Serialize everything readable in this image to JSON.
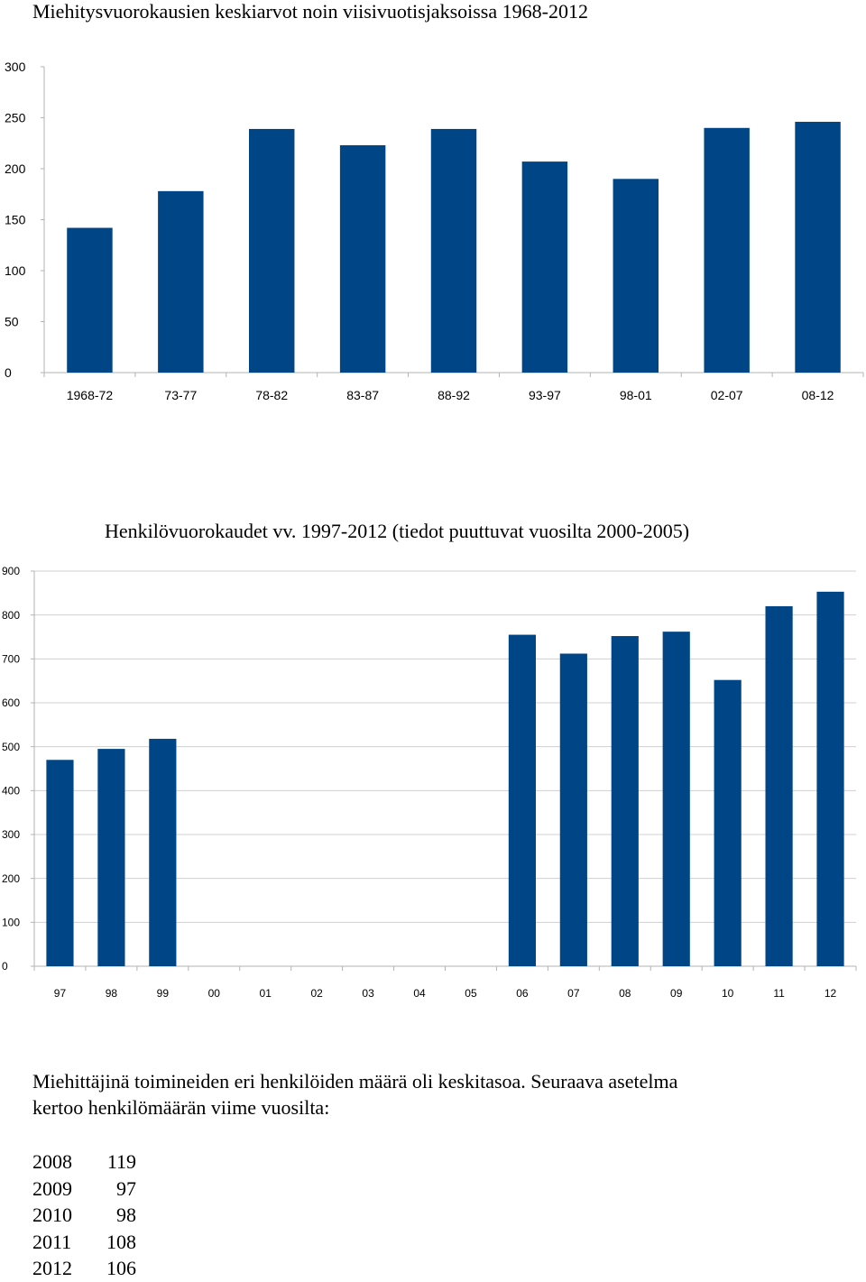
{
  "chart_data": [
    {
      "type": "bar",
      "title": "Miehitysvuorokausien keskiarvot noin viisivuotisjaksoissa 1968-2012",
      "categories": [
        "1968-72",
        "73-77",
        "78-82",
        "83-87",
        "88-92",
        "93-97",
        "98-01",
        "02-07",
        "08-12"
      ],
      "values": [
        142,
        178,
        239,
        223,
        239,
        207,
        190,
        240,
        246
      ],
      "ylim": [
        0,
        300
      ],
      "yticks": [
        0,
        50,
        100,
        150,
        200,
        250,
        300
      ],
      "grid": false,
      "bar_color": "#004586"
    },
    {
      "type": "bar",
      "title": "Henkilövuorokaudet vv. 1997-2012 (tiedot puuttuvat vuosilta 2000-2005)",
      "categories": [
        "97",
        "98",
        "99",
        "00",
        "01",
        "02",
        "03",
        "04",
        "05",
        "06",
        "07",
        "08",
        "09",
        "10",
        "11",
        "12"
      ],
      "values": [
        470,
        495,
        518,
        null,
        null,
        null,
        null,
        null,
        null,
        755,
        712,
        752,
        762,
        652,
        820,
        853
      ],
      "ylim": [
        0,
        900
      ],
      "yticks": [
        0,
        100,
        200,
        300,
        400,
        500,
        600,
        700,
        800,
        900
      ],
      "grid": true,
      "bar_color": "#004586"
    }
  ],
  "paragraph": {
    "line1": "Miehittäjinä toimineiden eri henkilöiden määrä oli keskitasoa. Seuraava asetelma",
    "line2": "kertoo henkilömäärän viime vuosilta:"
  },
  "person_counts": [
    {
      "year": "2008",
      "count": "119"
    },
    {
      "year": "2009",
      "count": "97"
    },
    {
      "year": "2010",
      "count": "98"
    },
    {
      "year": "2011",
      "count": "108"
    },
    {
      "year": "2012",
      "count": "106"
    }
  ]
}
